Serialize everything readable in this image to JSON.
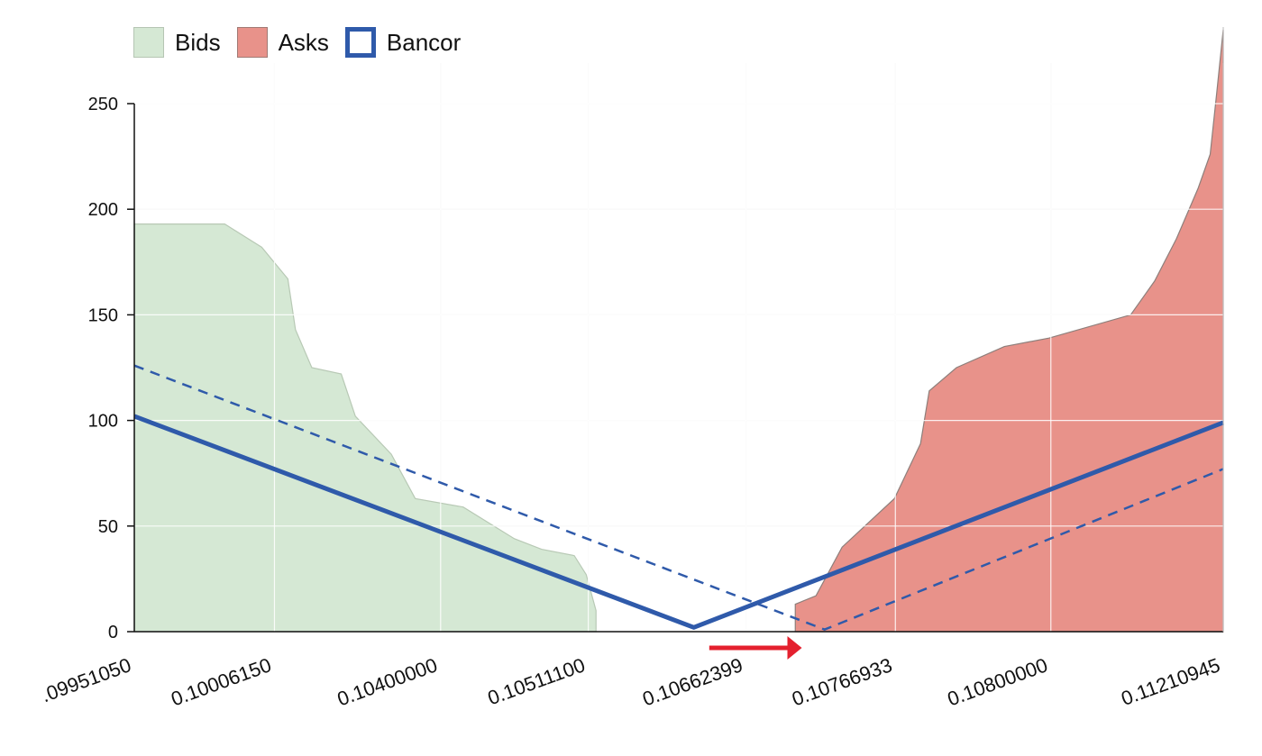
{
  "chart_data": {
    "type": "area",
    "legend": [
      {
        "label": "Bids",
        "fill": "#d5e8d4",
        "stroke": "#b5c5b3"
      },
      {
        "label": "Asks",
        "fill": "#e8928a",
        "stroke": "#a07a74"
      },
      {
        "label": "Bancor",
        "fill": "#ffffff",
        "stroke": "#2f5aaa"
      }
    ],
    "legend_position": "top-left",
    "grid": true,
    "ylim": [
      0,
      250
    ],
    "y_ticks": [
      0,
      50,
      100,
      150,
      200,
      250
    ],
    "y_tick_labels": [
      "0",
      "50",
      "100",
      "150",
      "200",
      "250"
    ],
    "xlim": [
      0,
      1
    ],
    "x_ticks": [
      {
        "pos": 0.0,
        "label": ".09951050"
      },
      {
        "pos": 0.1287,
        "label": "0.10006150"
      },
      {
        "pos": 0.2813,
        "label": "0.10400000"
      },
      {
        "pos": 0.4169,
        "label": "0.10511100"
      },
      {
        "pos": 0.5617,
        "label": "0.10662399"
      },
      {
        "pos": 0.6989,
        "label": "0.10766933"
      },
      {
        "pos": 0.8417,
        "label": "0.10800000"
      },
      {
        "pos": 1.0,
        "label": "0.11210945"
      }
    ],
    "series": [
      {
        "name": "Bids",
        "kind": "area",
        "color": "#d5e8d4",
        "points": [
          [
            0.0,
            193
          ],
          [
            0.083,
            193
          ],
          [
            0.117,
            182
          ],
          [
            0.141,
            167
          ],
          [
            0.148,
            143
          ],
          [
            0.163,
            125
          ],
          [
            0.19,
            122
          ],
          [
            0.203,
            102
          ],
          [
            0.236,
            84
          ],
          [
            0.258,
            63
          ],
          [
            0.302,
            59
          ],
          [
            0.349,
            44
          ],
          [
            0.374,
            39
          ],
          [
            0.404,
            36
          ],
          [
            0.415,
            27
          ],
          [
            0.424,
            10
          ],
          [
            0.424,
            0
          ],
          [
            0.0,
            0
          ]
        ]
      },
      {
        "name": "Asks",
        "kind": "area",
        "color": "#e8928a",
        "points": [
          [
            0.607,
            0
          ],
          [
            0.607,
            13
          ],
          [
            0.626,
            17
          ],
          [
            0.65,
            40
          ],
          [
            0.698,
            63
          ],
          [
            0.722,
            89
          ],
          [
            0.73,
            114
          ],
          [
            0.755,
            125
          ],
          [
            0.799,
            135
          ],
          [
            0.84,
            139
          ],
          [
            0.915,
            150
          ],
          [
            0.937,
            166
          ],
          [
            0.957,
            186
          ],
          [
            0.977,
            210
          ],
          [
            0.988,
            226
          ],
          [
            0.994,
            255
          ],
          [
            1.0,
            285
          ],
          [
            1.0,
            0
          ]
        ]
      },
      {
        "name": "Bancor",
        "kind": "line",
        "style": "solid",
        "color": "#2f5aaa",
        "points": [
          [
            0.0,
            102
          ],
          [
            0.5138,
            2
          ],
          [
            1.0,
            99
          ]
        ]
      },
      {
        "name": "Bancor",
        "kind": "line",
        "style": "dashed",
        "color": "#2f5aaa",
        "points": [
          [
            0.0,
            126
          ],
          [
            0.6339,
            1
          ],
          [
            1.0,
            77
          ]
        ]
      }
    ],
    "annotations": [
      {
        "type": "arrow",
        "direction": "right",
        "color": "#e4202e",
        "from_x": 0.528,
        "to_x": 0.613
      }
    ]
  }
}
